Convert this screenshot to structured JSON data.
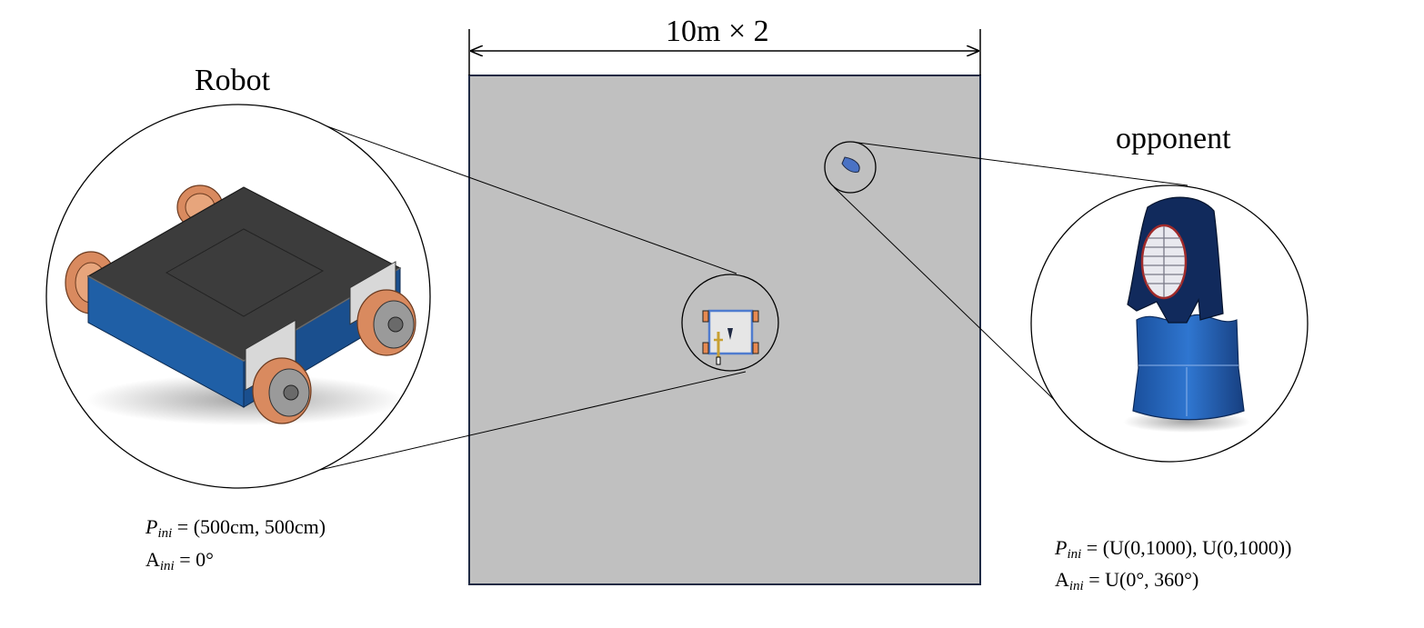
{
  "arena": {
    "dimension_label": "10m × 2",
    "color": "#c0c0c0",
    "border_color": "#1f2a44"
  },
  "robot": {
    "title": "Robot",
    "initial_position": {
      "symbol": "P",
      "subscript": "ini",
      "value": "= (500cm, 500cm)"
    },
    "initial_angle": {
      "symbol": "A",
      "subscript": "ini",
      "value": "= 0°"
    },
    "colors": {
      "body_side": "#1f5fa6",
      "top_plate": "#3c3c3c",
      "wheel": "#d98a5f"
    }
  },
  "opponent": {
    "title": "opponent",
    "initial_position": {
      "symbol": "P",
      "subscript": "ini",
      "value": "= (U(0,1000), U(0,1000))"
    },
    "initial_angle": {
      "symbol": "A",
      "subscript": "ini",
      "value": "= U(0°, 360°)"
    },
    "colors": {
      "helmet": "#112a5c",
      "armor": "#1f5fb3",
      "marker": "#4a72c4"
    }
  }
}
